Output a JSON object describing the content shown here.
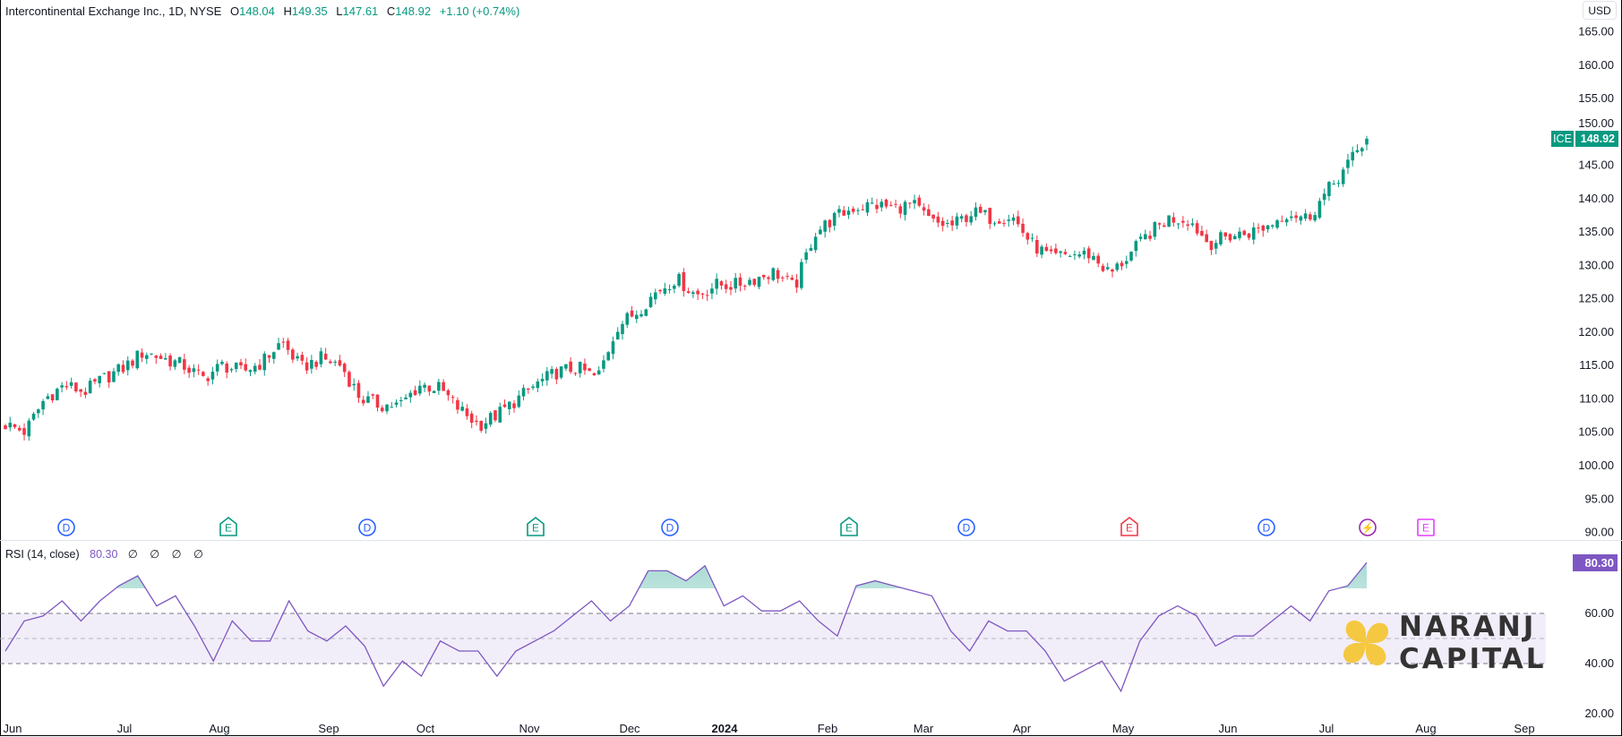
{
  "header": {
    "symbol_title": "Intercontinental Exchange Inc., 1D, NYSE",
    "open_label": "O",
    "open": "148.04",
    "high_label": "H",
    "high": "149.35",
    "low_label": "L",
    "low": "147.61",
    "close_label": "C",
    "close": "148.92",
    "change": "+1.10 (+0.74%)"
  },
  "currency_button": "USD",
  "price_tag": {
    "ticker": "ICE",
    "value": "148.92"
  },
  "rsi": {
    "title": "RSI (14, close)",
    "value": "80.30",
    "extras": [
      "∅",
      "∅",
      "∅",
      "∅"
    ],
    "axis_labels": [
      "60.00",
      "40.00",
      "20.00"
    ]
  },
  "price_axis_labels": [
    "165.00",
    "160.00",
    "155.00",
    "150.00",
    "145.00",
    "140.00",
    "135.00",
    "130.00",
    "125.00",
    "120.00",
    "115.00",
    "110.00",
    "105.00",
    "100.00",
    "95.00",
    "90.00"
  ],
  "time_axis_labels": [
    "Jun",
    "Jul",
    "Aug",
    "Sep",
    "Oct",
    "Nov",
    "Dec",
    "2024",
    "Feb",
    "Mar",
    "Apr",
    "May",
    "Jun",
    "Jul",
    "Aug",
    "Sep"
  ],
  "events": [
    {
      "type": "dividend",
      "label": "D"
    },
    {
      "type": "earnings",
      "label": "E"
    },
    {
      "type": "dividend",
      "label": "D"
    },
    {
      "type": "earnings",
      "label": "E"
    },
    {
      "type": "dividend",
      "label": "D"
    },
    {
      "type": "earnings",
      "label": "E"
    },
    {
      "type": "dividend",
      "label": "D"
    },
    {
      "type": "earnings-miss",
      "label": "E"
    },
    {
      "type": "dividend",
      "label": "D"
    },
    {
      "type": "split-flash",
      "label": "⚡"
    },
    {
      "type": "earnings-upcoming",
      "label": "E"
    }
  ],
  "watermark": {
    "line1": "NARANJ",
    "line2": "CAPITAL"
  },
  "colors": {
    "up": "#089981",
    "down": "#f23645",
    "rsi": "#7e57c2",
    "dividend": "#2962ff",
    "earnings": "#089981",
    "earnings_miss": "#f23645",
    "upcoming": "#e040fb",
    "flash": "#9c27b0",
    "logo": "#f5c842"
  },
  "chart_data": {
    "type": "candlestick",
    "title": "Intercontinental Exchange Inc., 1D, NYSE",
    "ylim": [
      90,
      165
    ],
    "bars": 290,
    "x_range": [
      "2023-06-01",
      "2024-07-15"
    ],
    "approx_weekly_close": [
      106.1,
      105,
      110,
      112,
      111,
      113,
      114.6,
      117,
      116,
      115,
      113,
      115,
      114,
      115.4,
      118.5,
      114.6,
      116,
      115,
      110,
      109,
      109,
      112,
      111.5,
      108.4,
      106,
      107.7,
      110,
      112.3,
      114,
      114.6,
      113,
      120.8,
      123,
      126,
      128,
      125.5,
      127,
      127,
      128,
      129,
      126.5,
      134.8,
      137,
      138.6,
      139,
      138.6,
      139,
      136.3,
      135.9,
      137.9,
      137,
      137.4,
      133.2,
      131,
      131.6,
      131.6,
      128.6,
      131.6,
      134.8,
      137,
      136.8,
      133.2,
      134.3,
      134.8,
      135.9,
      137.9,
      137,
      141,
      144.9,
      148.92
    ],
    "last_close": 148.92,
    "rsi": {
      "period": 14,
      "ylim": [
        20,
        90
      ],
      "bands": [
        40,
        50,
        60,
        70
      ],
      "values": [
        45,
        57,
        59,
        65,
        57,
        65,
        71,
        75,
        63,
        67,
        55,
        41,
        57,
        49,
        49,
        65,
        53,
        49,
        55,
        47,
        31,
        41,
        35,
        49,
        45,
        45,
        35,
        45,
        49,
        53,
        59,
        65,
        57,
        63,
        77,
        77,
        73,
        79,
        63,
        67,
        61,
        61,
        65,
        57,
        51,
        71,
        73,
        71,
        69,
        67,
        53,
        45,
        57,
        53,
        53,
        45,
        33,
        37,
        41,
        29,
        49,
        59,
        63,
        59,
        47,
        51,
        51,
        57,
        63,
        57,
        69,
        71,
        80.3
      ]
    }
  }
}
